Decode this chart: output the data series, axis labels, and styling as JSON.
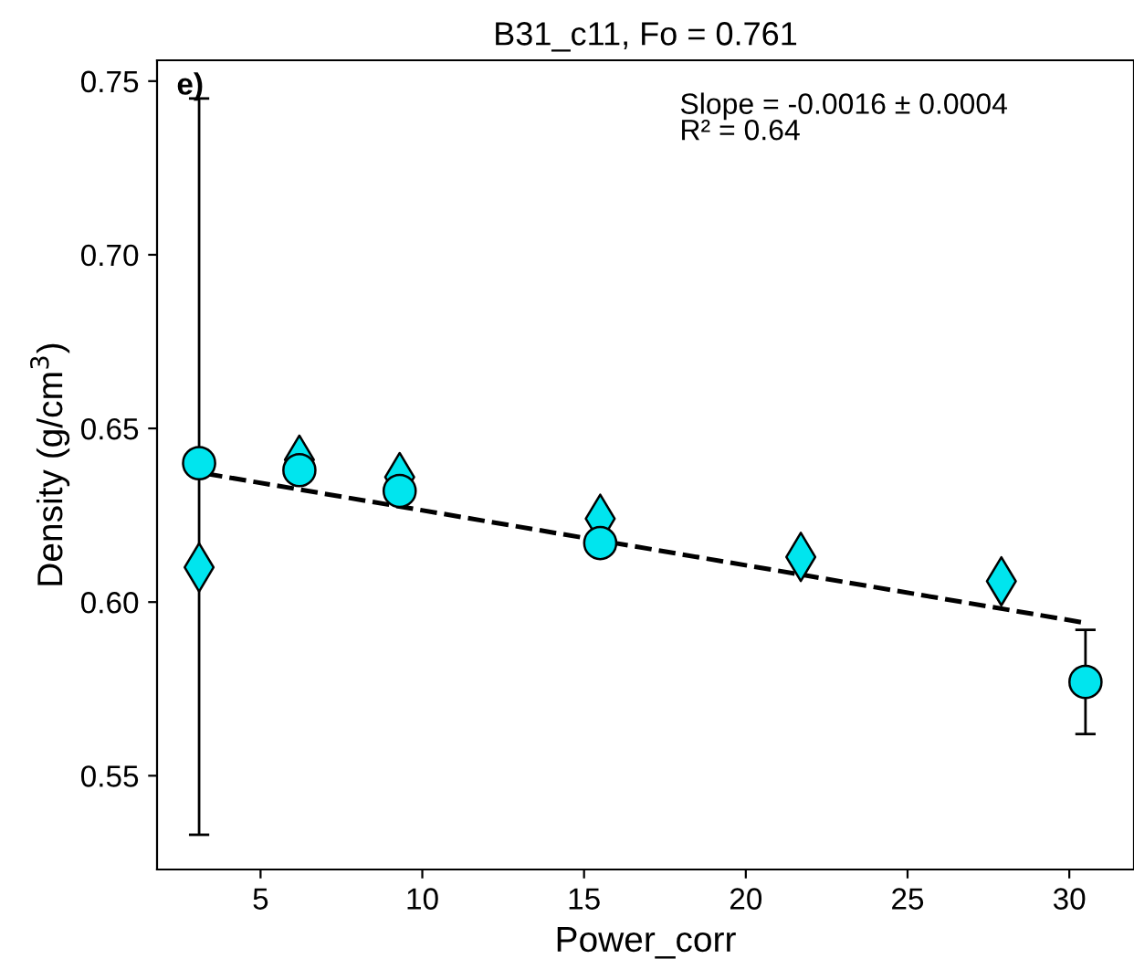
{
  "chart_data": {
    "type": "scatter",
    "title": "B31_c11, Fo = 0.761",
    "xlabel": "Power_corr",
    "ylabel": "Density (g/cm$^{3}$)",
    "annotations": [
      "e)",
      "Slope = -0.0016 ± 0.0004\nR² = 0.64"
    ],
    "xlim": [
      1.8,
      32
    ],
    "xticks": [
      5,
      10,
      15,
      20,
      25,
      30
    ],
    "ylim": [
      0.523,
      0.756
    ],
    "yticks": [
      {
        "value": 0.55,
        "label": "0.55"
      },
      {
        "value": 0.6,
        "label": "0.60"
      },
      {
        "value": 0.65,
        "label": "0.65"
      },
      {
        "value": 0.7,
        "label": "0.70"
      },
      {
        "value": 0.75,
        "label": "0.75"
      }
    ],
    "grid": false,
    "series": [
      {
        "marker": "diamond",
        "color": "#00e5ee",
        "x": [
          3.1,
          6.2,
          9.3,
          15.5,
          21.7,
          27.9
        ],
        "values": [
          0.61,
          0.641,
          0.636,
          0.624,
          0.613,
          0.606
        ]
      },
      {
        "marker": "circle",
        "color": "#00e5ee",
        "x": [
          3.1,
          6.2,
          9.3,
          15.5,
          30.5
        ],
        "values": [
          0.64,
          0.638,
          0.632,
          0.617,
          0.577
        ],
        "errors": [
          [
            0.533,
            0.745
          ],
          null,
          null,
          null,
          [
            0.562,
            0.592
          ]
        ]
      },
      {
        "type": "line",
        "line_style": "dashed",
        "color": "#000000",
        "x": [
          3.3,
          30.5
        ],
        "values": [
          0.637,
          0.594
        ]
      }
    ]
  }
}
